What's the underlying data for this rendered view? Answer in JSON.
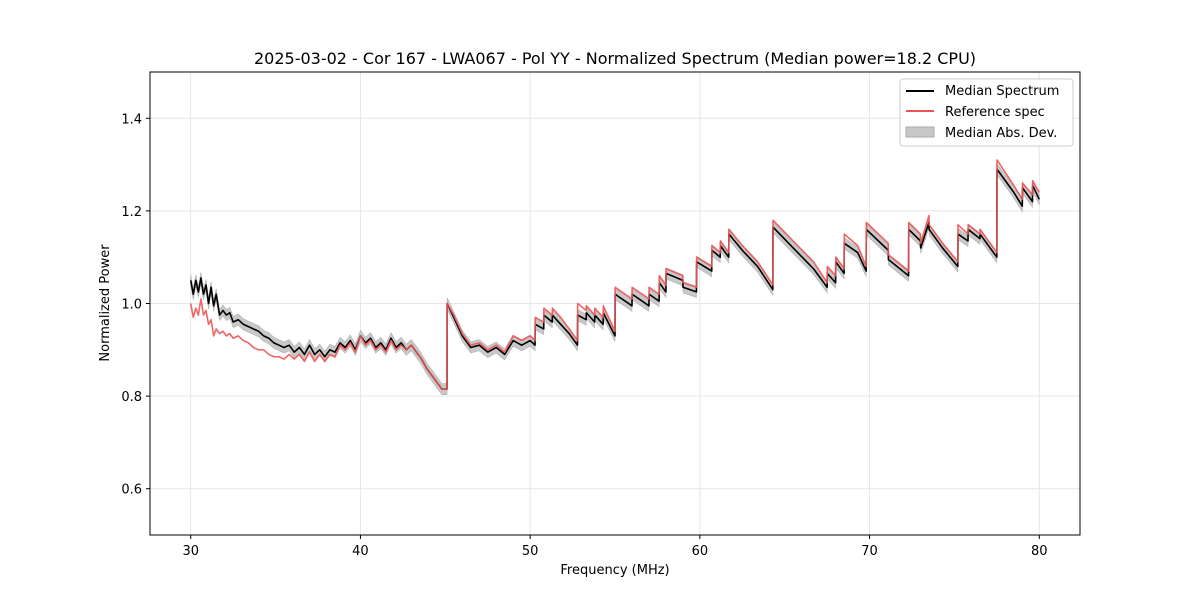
{
  "chart_data": {
    "type": "line",
    "title": "2025-03-02 - Cor 167 - LWA067 - Pol YY - Normalized Spectrum (Median power=18.2 CPU)",
    "xlabel": "Frequency (MHz)",
    "ylabel": "Normalized Power",
    "xlim": [
      27.6,
      82.4
    ],
    "ylim": [
      0.5,
      1.5
    ],
    "xticks": [
      30,
      40,
      50,
      60,
      70,
      80
    ],
    "yticks": [
      0.6,
      0.8,
      1.0,
      1.2,
      1.4
    ],
    "xtick_labels": [
      "30",
      "40",
      "50",
      "60",
      "70",
      "80"
    ],
    "ytick_labels": [
      "0.6",
      "0.8",
      "1.0",
      "1.2",
      "1.4"
    ],
    "grid": true,
    "legend_position": "top-right",
    "legend": [
      "Median Spectrum",
      "Reference spec",
      "Median Abs. Dev."
    ],
    "colors": {
      "median": "#000000",
      "reference": "#ee5555",
      "mad_fill": "#c8c8c8",
      "grid": "#e6e6e6"
    },
    "mad_halfwidth": 0.012,
    "series": [
      {
        "name": "Median Spectrum",
        "x": [
          30.0,
          30.15,
          30.3,
          30.45,
          30.6,
          30.75,
          30.9,
          31.05,
          31.2,
          31.35,
          31.5,
          31.7,
          31.9,
          32.1,
          32.3,
          32.5,
          32.8,
          33.1,
          33.4,
          33.7,
          34.0,
          34.3,
          34.6,
          34.9,
          35.2,
          35.5,
          35.8,
          36.1,
          36.4,
          36.7,
          37.0,
          37.3,
          37.6,
          37.9,
          38.2,
          38.5,
          38.8,
          39.1,
          39.4,
          39.7,
          40.0,
          40.3,
          40.6,
          40.9,
          41.2,
          41.5,
          41.8,
          42.1,
          42.4,
          42.7,
          43.0,
          43.3,
          43.6,
          43.9,
          44.2,
          44.5,
          44.8,
          45.1,
          45.11,
          45.5,
          46.0,
          46.5,
          47.0,
          47.5,
          48.0,
          48.5,
          49.0,
          49.5,
          50.0,
          50.29,
          50.3,
          50.8,
          50.81,
          51.3,
          51.31,
          51.8,
          52.3,
          52.79,
          52.8,
          53.3,
          53.31,
          53.8,
          53.81,
          54.3,
          54.31,
          55.0,
          55.01,
          56.0,
          56.01,
          57.0,
          57.01,
          57.6,
          57.61,
          58.0,
          58.01,
          59.0,
          59.01,
          59.8,
          59.81,
          60.7,
          60.71,
          61.2,
          61.21,
          61.7,
          61.71,
          62.5,
          63.4,
          64.3,
          64.31,
          65.5,
          66.7,
          67.5,
          67.51,
          68.0,
          68.01,
          68.5,
          68.51,
          69.3,
          69.8,
          69.81,
          71.1,
          71.11,
          72.3,
          72.31,
          73.0,
          73.01,
          73.5,
          73.51,
          74.3,
          75.2,
          75.21,
          75.8,
          75.81,
          76.5,
          76.51,
          77.5,
          77.51,
          78.5,
          79.0,
          79.01,
          79.6,
          79.61,
          80.0
        ],
        "y": [
          1.05,
          1.02,
          1.05,
          1.025,
          1.055,
          1.02,
          1.04,
          1.0,
          1.035,
          0.995,
          1.02,
          0.975,
          0.985,
          0.975,
          0.98,
          0.96,
          0.965,
          0.955,
          0.95,
          0.945,
          0.94,
          0.93,
          0.925,
          0.915,
          0.91,
          0.905,
          0.91,
          0.895,
          0.905,
          0.89,
          0.91,
          0.89,
          0.9,
          0.885,
          0.9,
          0.895,
          0.915,
          0.905,
          0.92,
          0.9,
          0.93,
          0.915,
          0.925,
          0.905,
          0.915,
          0.9,
          0.925,
          0.905,
          0.915,
          0.9,
          0.91,
          0.895,
          0.88,
          0.86,
          0.845,
          0.83,
          0.815,
          0.815,
          1.0,
          0.97,
          0.93,
          0.905,
          0.91,
          0.895,
          0.905,
          0.89,
          0.92,
          0.91,
          0.92,
          0.91,
          0.955,
          0.945,
          0.975,
          0.96,
          0.975,
          0.955,
          0.935,
          0.91,
          0.975,
          0.965,
          0.98,
          0.96,
          0.975,
          0.955,
          0.98,
          0.93,
          1.02,
          0.995,
          1.02,
          0.995,
          1.02,
          1.005,
          1.045,
          1.025,
          1.065,
          1.05,
          1.035,
          1.025,
          1.09,
          1.07,
          1.115,
          1.1,
          1.125,
          1.1,
          1.15,
          1.115,
          1.08,
          1.03,
          1.165,
          1.12,
          1.075,
          1.035,
          1.065,
          1.045,
          1.09,
          1.065,
          1.13,
          1.11,
          1.07,
          1.16,
          1.115,
          1.095,
          1.06,
          1.16,
          1.135,
          1.12,
          1.175,
          1.16,
          1.12,
          1.08,
          1.15,
          1.135,
          1.16,
          1.14,
          1.15,
          1.1,
          1.29,
          1.24,
          1.21,
          1.25,
          1.22,
          1.255,
          1.225
        ]
      },
      {
        "name": "Reference spec",
        "x": [
          30.0,
          30.15,
          30.3,
          30.45,
          30.6,
          30.75,
          30.9,
          31.05,
          31.2,
          31.35,
          31.5,
          31.7,
          31.9,
          32.1,
          32.3,
          32.5,
          32.8,
          33.1,
          33.4,
          33.7,
          34.0,
          34.3,
          34.6,
          34.9,
          35.2,
          35.5,
          35.8,
          36.1,
          36.4,
          36.7,
          37.0,
          37.3,
          37.6,
          37.9,
          38.2,
          38.5,
          38.8,
          39.1,
          39.4,
          39.7,
          40.0,
          40.3,
          40.6,
          40.9,
          41.2,
          41.5,
          41.8,
          42.1,
          42.4,
          42.7,
          43.0,
          43.3,
          43.6,
          43.9,
          44.2,
          44.5,
          44.8,
          45.1,
          45.11,
          45.5,
          46.0,
          46.5,
          47.0,
          47.5,
          48.0,
          48.5,
          49.0,
          49.5,
          50.0,
          50.29,
          50.3,
          50.8,
          50.81,
          51.3,
          51.31,
          51.8,
          52.3,
          52.79,
          52.8,
          53.3,
          53.31,
          53.8,
          53.81,
          54.3,
          54.31,
          55.0,
          55.01,
          56.0,
          56.01,
          57.0,
          57.01,
          57.6,
          57.61,
          58.0,
          58.01,
          59.0,
          59.01,
          59.8,
          59.81,
          60.7,
          60.71,
          61.2,
          61.21,
          61.7,
          61.71,
          62.5,
          63.4,
          64.3,
          64.31,
          65.5,
          66.7,
          67.5,
          67.51,
          68.0,
          68.01,
          68.5,
          68.51,
          69.3,
          69.8,
          69.81,
          71.1,
          71.11,
          72.3,
          72.31,
          73.0,
          73.01,
          73.5,
          73.51,
          74.3,
          75.2,
          75.21,
          75.8,
          75.81,
          76.5,
          76.51,
          77.5,
          77.51,
          78.5,
          79.0,
          79.01,
          79.6,
          79.61,
          80.0
        ],
        "y": [
          1.0,
          0.97,
          0.99,
          0.975,
          1.01,
          0.975,
          0.985,
          0.955,
          0.965,
          0.93,
          0.945,
          0.935,
          0.94,
          0.93,
          0.935,
          0.925,
          0.93,
          0.92,
          0.915,
          0.905,
          0.9,
          0.9,
          0.89,
          0.885,
          0.885,
          0.88,
          0.89,
          0.88,
          0.89,
          0.875,
          0.895,
          0.875,
          0.89,
          0.875,
          0.89,
          0.885,
          0.91,
          0.9,
          0.915,
          0.895,
          0.93,
          0.91,
          0.92,
          0.9,
          0.91,
          0.895,
          0.92,
          0.9,
          0.91,
          0.9,
          0.91,
          0.895,
          0.88,
          0.86,
          0.845,
          0.83,
          0.815,
          0.815,
          1.0,
          0.975,
          0.935,
          0.91,
          0.915,
          0.9,
          0.91,
          0.895,
          0.93,
          0.92,
          0.93,
          0.92,
          0.97,
          0.96,
          0.99,
          0.975,
          0.99,
          0.97,
          0.945,
          0.92,
          1.0,
          0.985,
          0.995,
          0.975,
          0.99,
          0.97,
          0.995,
          0.94,
          1.035,
          1.01,
          1.035,
          1.01,
          1.035,
          1.02,
          1.06,
          1.04,
          1.075,
          1.06,
          1.045,
          1.035,
          1.1,
          1.08,
          1.125,
          1.11,
          1.135,
          1.11,
          1.16,
          1.125,
          1.09,
          1.04,
          1.18,
          1.135,
          1.09,
          1.045,
          1.08,
          1.06,
          1.1,
          1.075,
          1.15,
          1.125,
          1.08,
          1.175,
          1.13,
          1.105,
          1.07,
          1.175,
          1.15,
          1.13,
          1.19,
          1.17,
          1.13,
          1.09,
          1.17,
          1.15,
          1.17,
          1.15,
          1.16,
          1.11,
          1.31,
          1.255,
          1.225,
          1.26,
          1.235,
          1.265,
          1.24
        ]
      }
    ]
  }
}
